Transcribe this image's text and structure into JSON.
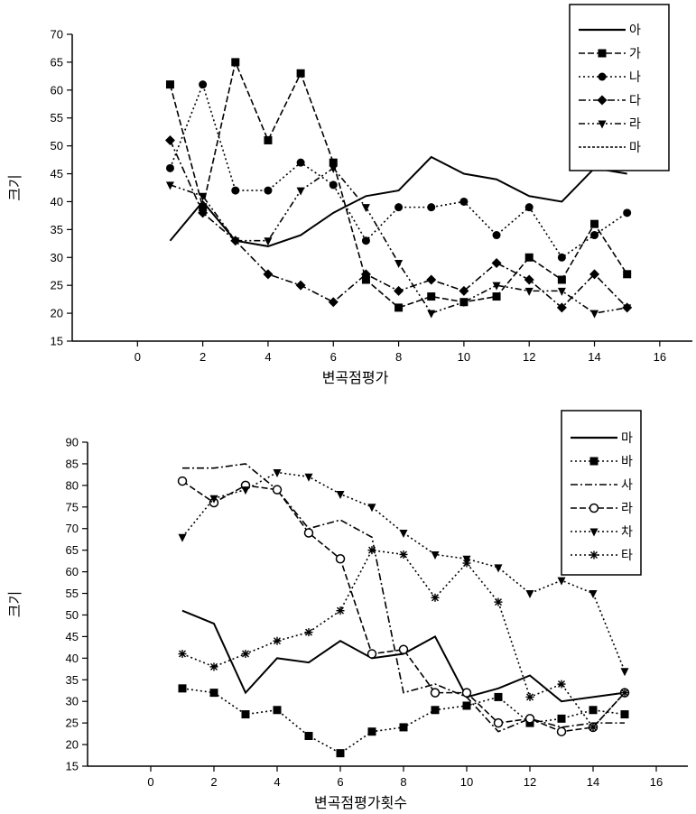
{
  "chart_data": [
    {
      "type": "line",
      "xlabel": "변곡점평가",
      "ylabel": "크기",
      "xlim": [
        -2,
        17
      ],
      "ylim": [
        15,
        70
      ],
      "xticks": [
        "0",
        "2",
        "4",
        "6",
        "8",
        "10",
        "12",
        "14",
        "16"
      ],
      "yticks": [
        "15",
        "20",
        "25",
        "30",
        "35",
        "40",
        "45",
        "50",
        "55",
        "60",
        "65",
        "70"
      ],
      "grid": false,
      "legend_position": "top-right",
      "x": [
        1,
        2,
        3,
        4,
        5,
        6,
        7,
        8,
        9,
        10,
        11,
        12,
        13,
        14,
        15
      ],
      "series": [
        {
          "name": "아",
          "style": "solid",
          "marker": "none",
          "values": [
            33,
            40,
            33,
            32,
            34,
            38,
            41,
            42,
            48,
            45,
            44,
            41,
            40,
            46,
            45
          ]
        },
        {
          "name": "가",
          "style": "dashed",
          "marker": "square",
          "values": [
            61,
            39,
            65,
            51,
            63,
            47,
            26,
            21,
            23,
            22,
            23,
            30,
            26,
            36,
            27
          ]
        },
        {
          "name": "나",
          "style": "dotted",
          "marker": "circle",
          "values": [
            46,
            61,
            42,
            42,
            47,
            43,
            33,
            39,
            39,
            40,
            34,
            39,
            30,
            34,
            38
          ]
        },
        {
          "name": "다",
          "style": "dashdot",
          "marker": "diamond",
          "values": [
            51,
            38,
            33,
            27,
            25,
            22,
            27,
            24,
            26,
            24,
            29,
            26,
            21,
            27,
            21
          ]
        },
        {
          "name": "라",
          "style": "dashdotdot",
          "marker": "triangle-down",
          "values": [
            43,
            41,
            33,
            33,
            42,
            46,
            39,
            29,
            20,
            22,
            25,
            24,
            24,
            20,
            21
          ]
        }
      ],
      "extra_legend": [
        {
          "name": "마",
          "style": "shortdot"
        }
      ]
    },
    {
      "type": "line",
      "xlabel": "변곡점평가횟수",
      "ylabel": "크기",
      "xlim": [
        -2,
        17
      ],
      "ylim": [
        15,
        90
      ],
      "xticks": [
        "0",
        "2",
        "4",
        "6",
        "8",
        "10",
        "12",
        "14",
        "16"
      ],
      "yticks": [
        "15",
        "20",
        "25",
        "30",
        "35",
        "40",
        "45",
        "50",
        "55",
        "60",
        "65",
        "70",
        "75",
        "80",
        "85",
        "90"
      ],
      "grid": false,
      "legend_position": "top-right",
      "x": [
        1,
        2,
        3,
        4,
        5,
        6,
        7,
        8,
        9,
        10,
        11,
        12,
        13,
        14,
        15
      ],
      "series": [
        {
          "name": "마",
          "style": "solid",
          "marker": "none",
          "values": [
            51,
            48,
            32,
            40,
            39,
            44,
            40,
            41,
            45,
            31,
            33,
            36,
            30,
            31,
            32
          ]
        },
        {
          "name": "바",
          "style": "dotted",
          "marker": "square",
          "values": [
            33,
            32,
            27,
            28,
            22,
            18,
            23,
            24,
            28,
            29,
            31,
            25,
            26,
            28,
            27
          ]
        },
        {
          "name": "사",
          "style": "dashdot",
          "marker": "none",
          "values": [
            84,
            84,
            85,
            79,
            70,
            72,
            68,
            32,
            34,
            31,
            23,
            26,
            24,
            25,
            25
          ]
        },
        {
          "name": "라",
          "style": "dashed",
          "marker": "circle-open",
          "values": [
            81,
            76,
            80,
            79,
            69,
            63,
            41,
            42,
            32,
            32,
            25,
            26,
            23,
            24,
            32
          ]
        },
        {
          "name": "차",
          "style": "dotted",
          "marker": "triangle-down",
          "values": [
            68,
            77,
            79,
            83,
            82,
            78,
            75,
            69,
            64,
            63,
            61,
            55,
            58,
            55,
            37
          ]
        },
        {
          "name": "타",
          "style": "dotted",
          "marker": "star",
          "values": [
            41,
            38,
            41,
            44,
            46,
            51,
            65,
            64,
            54,
            62,
            53,
            31,
            34,
            24,
            32
          ]
        }
      ]
    }
  ]
}
